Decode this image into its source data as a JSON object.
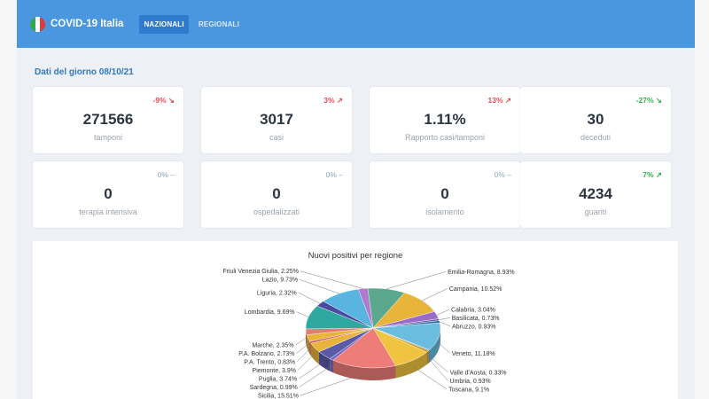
{
  "app": {
    "title": "COVID-19 Italia",
    "tabs": [
      {
        "label": "NAZIONALI",
        "active": true
      },
      {
        "label": "REGIONALI",
        "active": false
      }
    ]
  },
  "section": {
    "title": "Dati del giorno 08/10/21"
  },
  "cards": [
    {
      "value": "271566",
      "label": "tamponi",
      "delta": "-9%",
      "trend": "down",
      "color": "#e74c5e"
    },
    {
      "value": "3017",
      "label": "casi",
      "delta": "3%",
      "trend": "up",
      "color": "#e74c5e"
    },
    {
      "value": "1.11%",
      "label": "Rapporto casi/tamponi",
      "delta": "13%",
      "trend": "up",
      "color": "#e74c5e"
    },
    {
      "value": "30",
      "label": "deceduti",
      "delta": "-27%",
      "trend": "down",
      "color": "#2eb34c"
    },
    {
      "value": "0",
      "label": "terapia intensiva",
      "delta": "0%",
      "trend": "flat",
      "color": "#8aa4c4"
    },
    {
      "value": "0",
      "label": "ospedalizzati",
      "delta": "0%",
      "trend": "flat",
      "color": "#8aa4c4"
    },
    {
      "value": "0",
      "label": "isolamento",
      "delta": "0%",
      "trend": "flat",
      "color": "#8aa4c4"
    },
    {
      "value": "4234",
      "label": "guariti",
      "delta": "7%",
      "trend": "up",
      "color": "#2eb34c"
    }
  ],
  "chart_data": {
    "type": "pie",
    "title": "Nuovi positivi per regione",
    "slices": [
      {
        "name": "Emilia-Romagna",
        "value": 8.93,
        "label": "Emilia-Romagna, 8.93%",
        "color": "#5aa88e"
      },
      {
        "name": "Campania",
        "value": 10.52,
        "label": "Campania, 10.52%",
        "color": "#e8b53a"
      },
      {
        "name": "Calabria",
        "value": 3.04,
        "label": "Calabria, 3.04%",
        "color": "#9b6bc9"
      },
      {
        "name": "Basilicata",
        "value": 0.73,
        "label": "Basilicata, 0.73%",
        "color": "#6a5aa8"
      },
      {
        "name": "Abruzzo",
        "value": 0.93,
        "label": "Abruzzo, 0.93%",
        "color": "#2f6fa8"
      },
      {
        "name": "Veneto",
        "value": 11.18,
        "label": "Veneto, 11.18%",
        "color": "#6bbde0"
      },
      {
        "name": "Valle d'Aosta",
        "value": 0.33,
        "label": "Valle d'Aosta, 0.33%",
        "color": "#3e8bd0"
      },
      {
        "name": "Umbria",
        "value": 0.93,
        "label": "Umbria, 0.93%",
        "color": "#c9a02c"
      },
      {
        "name": "Toscana",
        "value": 9.1,
        "label": "Toscana, 9.1%",
        "color": "#f0c440"
      },
      {
        "name": "Sicilia",
        "value": 15.51,
        "label": "Sicilia, 15.51%",
        "color": "#ee7d7a"
      },
      {
        "name": "Sardegna",
        "value": 0.99,
        "label": "Sardegna, 0.99%",
        "color": "#7a6ac0"
      },
      {
        "name": "Puglia",
        "value": 3.74,
        "label": "Puglia, 3.74%",
        "color": "#5a5aa8"
      },
      {
        "name": "Piemonte",
        "value": 3.9,
        "label": "Piemonte, 3.9%",
        "color": "#e8b53a"
      },
      {
        "name": "P.A. Trento",
        "value": 0.83,
        "label": "P.A. Trento, 0.83%",
        "color": "#d05a5a"
      },
      {
        "name": "P.A. Bolzano",
        "value": 2.73,
        "label": "P.A. Bolzano, 2.73%",
        "color": "#e8b53a"
      },
      {
        "name": "Marche",
        "value": 2.35,
        "label": "Marche, 2.35%",
        "color": "#e77a6e"
      },
      {
        "name": "Lombardia",
        "value": 9.69,
        "label": "Lombardia, 9.69%",
        "color": "#2ea8a0"
      },
      {
        "name": "Liguria",
        "value": 2.32,
        "label": "Liguria, 2.32%",
        "color": "#4a4aa0"
      },
      {
        "name": "Lazio",
        "value": 9.73,
        "label": "Lazio, 9.73%",
        "color": "#5ab4e0"
      },
      {
        "name": "Friuli Venezia Giulia",
        "value": 2.25,
        "label": "Friuli Venezia Giulia, 2.25%",
        "color": "#b07ad0"
      }
    ]
  }
}
